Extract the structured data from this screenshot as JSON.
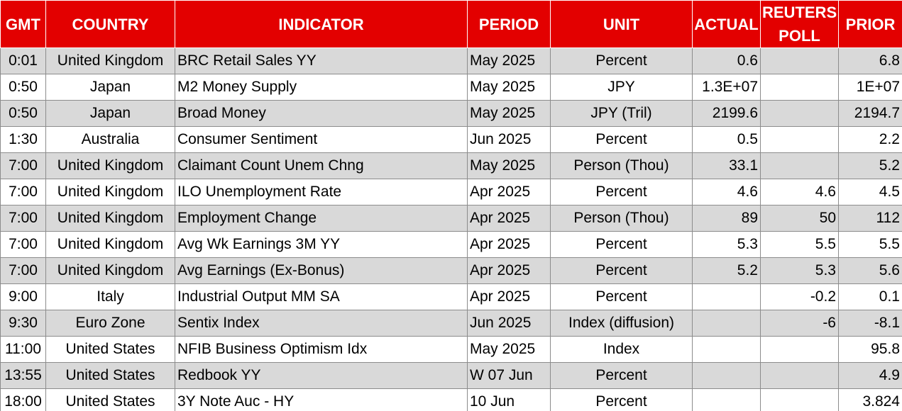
{
  "table": {
    "columns": [
      "GMT",
      "COUNTRY",
      "INDICATOR",
      "PERIOD",
      "UNIT",
      "ACTUAL",
      "REUTERS POLL",
      "PRIOR"
    ],
    "rows": [
      [
        "0:01",
        "United Kingdom",
        "BRC Retail Sales YY",
        "May 2025",
        "Percent",
        "0.6",
        null,
        "6.8"
      ],
      [
        "0:50",
        "Japan",
        "M2 Money Supply",
        "May 2025",
        "JPY",
        "1.3E+07",
        null,
        "1E+07"
      ],
      [
        "0:50",
        "Japan",
        "Broad Money",
        "May 2025",
        "JPY (Tril)",
        "2199.6",
        null,
        "2194.7"
      ],
      [
        "1:30",
        "Australia",
        "Consumer Sentiment",
        "Jun 2025",
        "Percent",
        "0.5",
        null,
        "2.2"
      ],
      [
        "7:00",
        "United Kingdom",
        "Claimant Count Unem Chng",
        "May 2025",
        "Person (Thou)",
        "33.1",
        null,
        "5.2"
      ],
      [
        "7:00",
        "United Kingdom",
        "ILO Unemployment Rate",
        "Apr 2025",
        "Percent",
        "4.6",
        "4.6",
        "4.5"
      ],
      [
        "7:00",
        "United Kingdom",
        "Employment Change",
        "Apr 2025",
        "Person (Thou)",
        "89",
        "50",
        "112"
      ],
      [
        "7:00",
        "United Kingdom",
        "Avg Wk Earnings 3M YY",
        "Apr 2025",
        "Percent",
        "5.3",
        "5.5",
        "5.5"
      ],
      [
        "7:00",
        "United Kingdom",
        "Avg Earnings (Ex-Bonus)",
        "Apr 2025",
        "Percent",
        "5.2",
        "5.3",
        "5.6"
      ],
      [
        "9:00",
        "Italy",
        "Industrial Output MM SA",
        "Apr 2025",
        "Percent",
        null,
        "-0.2",
        "0.1"
      ],
      [
        "9:30",
        "Euro Zone",
        "Sentix Index",
        "Jun 2025",
        "Index (diffusion)",
        null,
        "-6",
        "-8.1"
      ],
      [
        "11:00",
        "United States",
        "NFIB Business Optimism Idx",
        "May 2025",
        "Index",
        null,
        null,
        "95.8"
      ],
      [
        "13:55",
        "United States",
        "Redbook YY",
        "W 07 Jun",
        "Percent",
        null,
        null,
        "4.9"
      ],
      [
        "18:00",
        "United States",
        "3Y Note Auc - HY",
        "10 Jun",
        "Percent",
        null,
        null,
        "3.824"
      ]
    ]
  }
}
